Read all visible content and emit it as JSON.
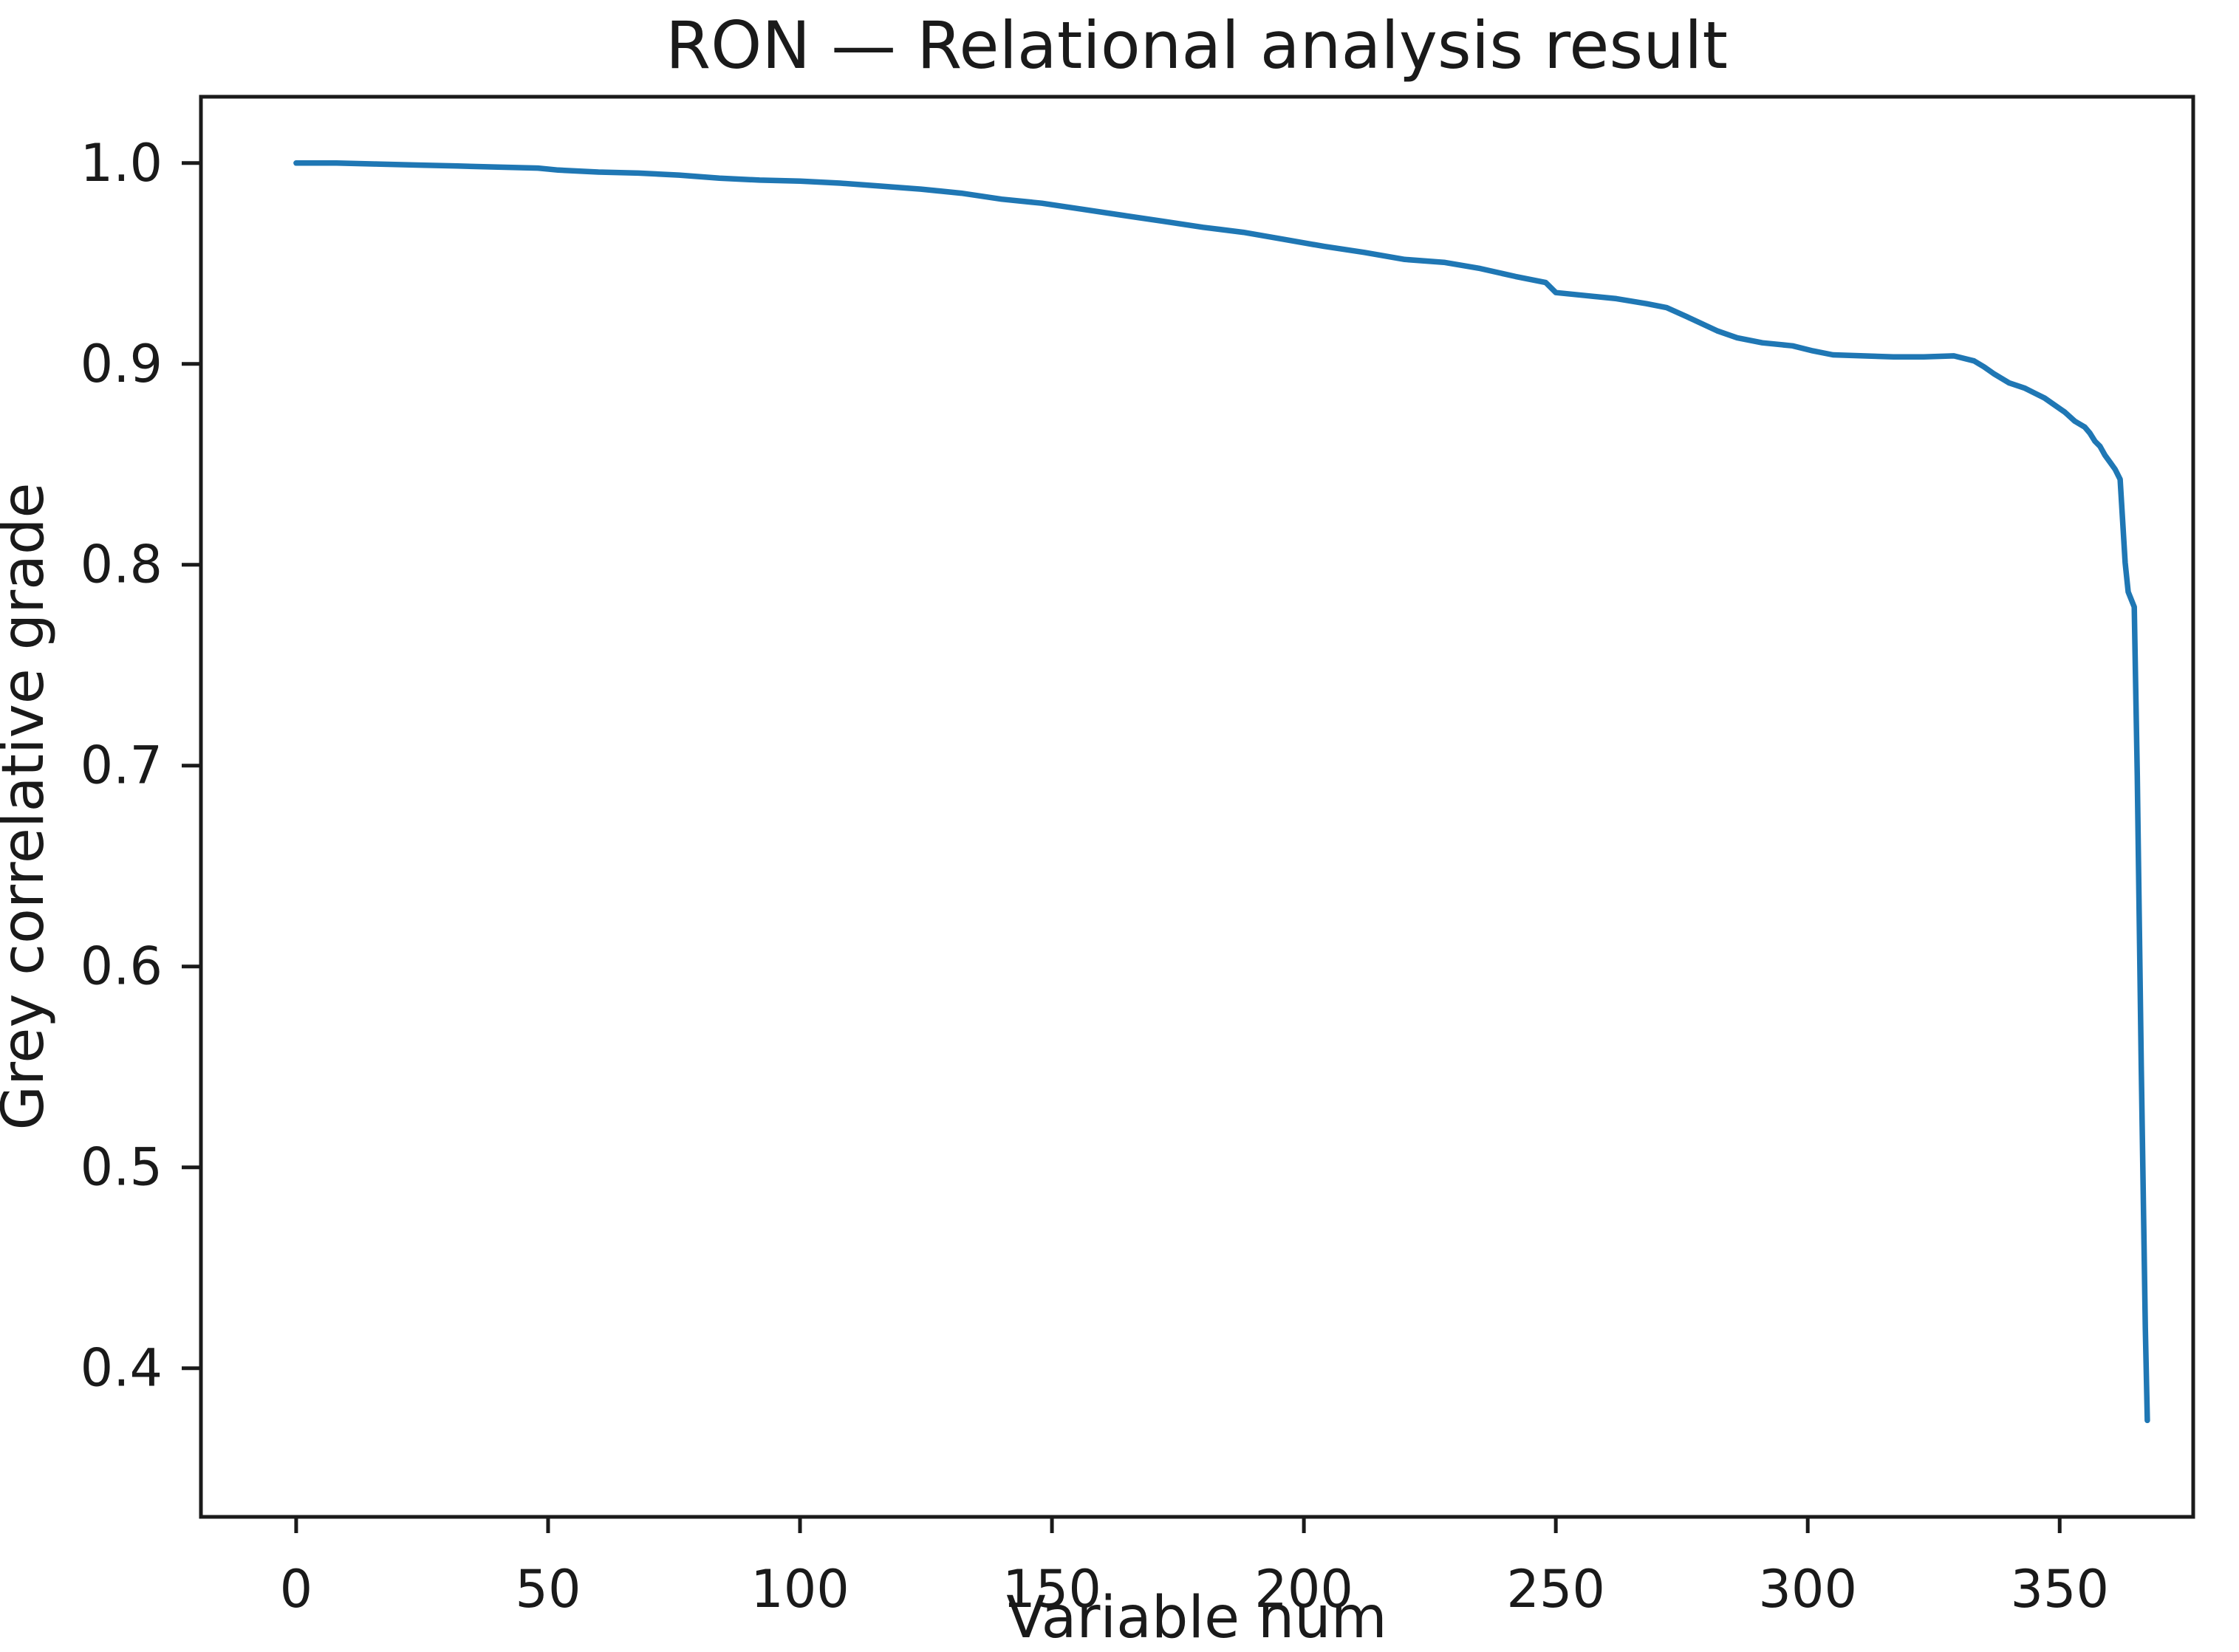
{
  "chart_data": {
    "type": "line",
    "title": "RON — Relational analysis result",
    "xlabel": "Variable num",
    "ylabel": "Grey correlative grade",
    "x_ticks": [
      0,
      50,
      100,
      150,
      200,
      250,
      300,
      350
    ],
    "y_ticks": [
      0.4,
      0.5,
      0.6,
      0.7,
      0.8,
      0.9,
      1.0
    ],
    "xlim": [
      -18.9,
      376.5
    ],
    "ylim": [
      0.326,
      1.033
    ],
    "grid": false,
    "legend_position": "none",
    "line_color": "#1f77b4",
    "axis_color": "#1a1a1a",
    "text_color": "#1a1a1a",
    "series": [
      {
        "name": "grey-correlative-grade",
        "points": [
          [
            0,
            1.0
          ],
          [
            8,
            1.0
          ],
          [
            16,
            0.9995
          ],
          [
            24,
            0.999
          ],
          [
            32,
            0.9985
          ],
          [
            40,
            0.998
          ],
          [
            48,
            0.9975
          ],
          [
            52,
            0.9965
          ],
          [
            60,
            0.9955
          ],
          [
            68,
            0.995
          ],
          [
            76,
            0.994
          ],
          [
            84,
            0.9925
          ],
          [
            92,
            0.9915
          ],
          [
            100,
            0.991
          ],
          [
            108,
            0.99
          ],
          [
            116,
            0.9885
          ],
          [
            124,
            0.987
          ],
          [
            132,
            0.985
          ],
          [
            140,
            0.982
          ],
          [
            148,
            0.98
          ],
          [
            156,
            0.977
          ],
          [
            164,
            0.974
          ],
          [
            172,
            0.971
          ],
          [
            180,
            0.968
          ],
          [
            188,
            0.9655
          ],
          [
            196,
            0.962
          ],
          [
            204,
            0.9585
          ],
          [
            212,
            0.9555
          ],
          [
            220,
            0.952
          ],
          [
            228,
            0.9505
          ],
          [
            235,
            0.9475
          ],
          [
            242,
            0.9435
          ],
          [
            248,
            0.9405
          ],
          [
            250,
            0.9355
          ],
          [
            256,
            0.934
          ],
          [
            262,
            0.9325
          ],
          [
            268,
            0.93
          ],
          [
            272,
            0.928
          ],
          [
            276,
            0.9235
          ],
          [
            279,
            0.92
          ],
          [
            282,
            0.9165
          ],
          [
            286,
            0.913
          ],
          [
            291,
            0.9105
          ],
          [
            297,
            0.909
          ],
          [
            301,
            0.9065
          ],
          [
            305,
            0.9045
          ],
          [
            311,
            0.904
          ],
          [
            317,
            0.9035
          ],
          [
            323,
            0.9035
          ],
          [
            329,
            0.904
          ],
          [
            333,
            0.9015
          ],
          [
            335,
            0.8985
          ],
          [
            337,
            0.895
          ],
          [
            340,
            0.8905
          ],
          [
            343,
            0.888
          ],
          [
            345,
            0.8855
          ],
          [
            347,
            0.883
          ],
          [
            349,
            0.8795
          ],
          [
            351,
            0.876
          ],
          [
            353,
            0.8715
          ],
          [
            355,
            0.8685
          ],
          [
            356,
            0.8655
          ],
          [
            357,
            0.8615
          ],
          [
            358,
            0.859
          ],
          [
            359,
            0.8545
          ],
          [
            360,
            0.851
          ],
          [
            361,
            0.8475
          ],
          [
            362,
            0.8425
          ],
          [
            363,
            0.801
          ],
          [
            363.6,
            0.7865
          ],
          [
            364.8,
            0.779
          ],
          [
            365.4,
            0.695
          ],
          [
            366.2,
            0.55
          ],
          [
            367.0,
            0.42
          ],
          [
            367.4,
            0.374
          ]
        ]
      }
    ]
  }
}
